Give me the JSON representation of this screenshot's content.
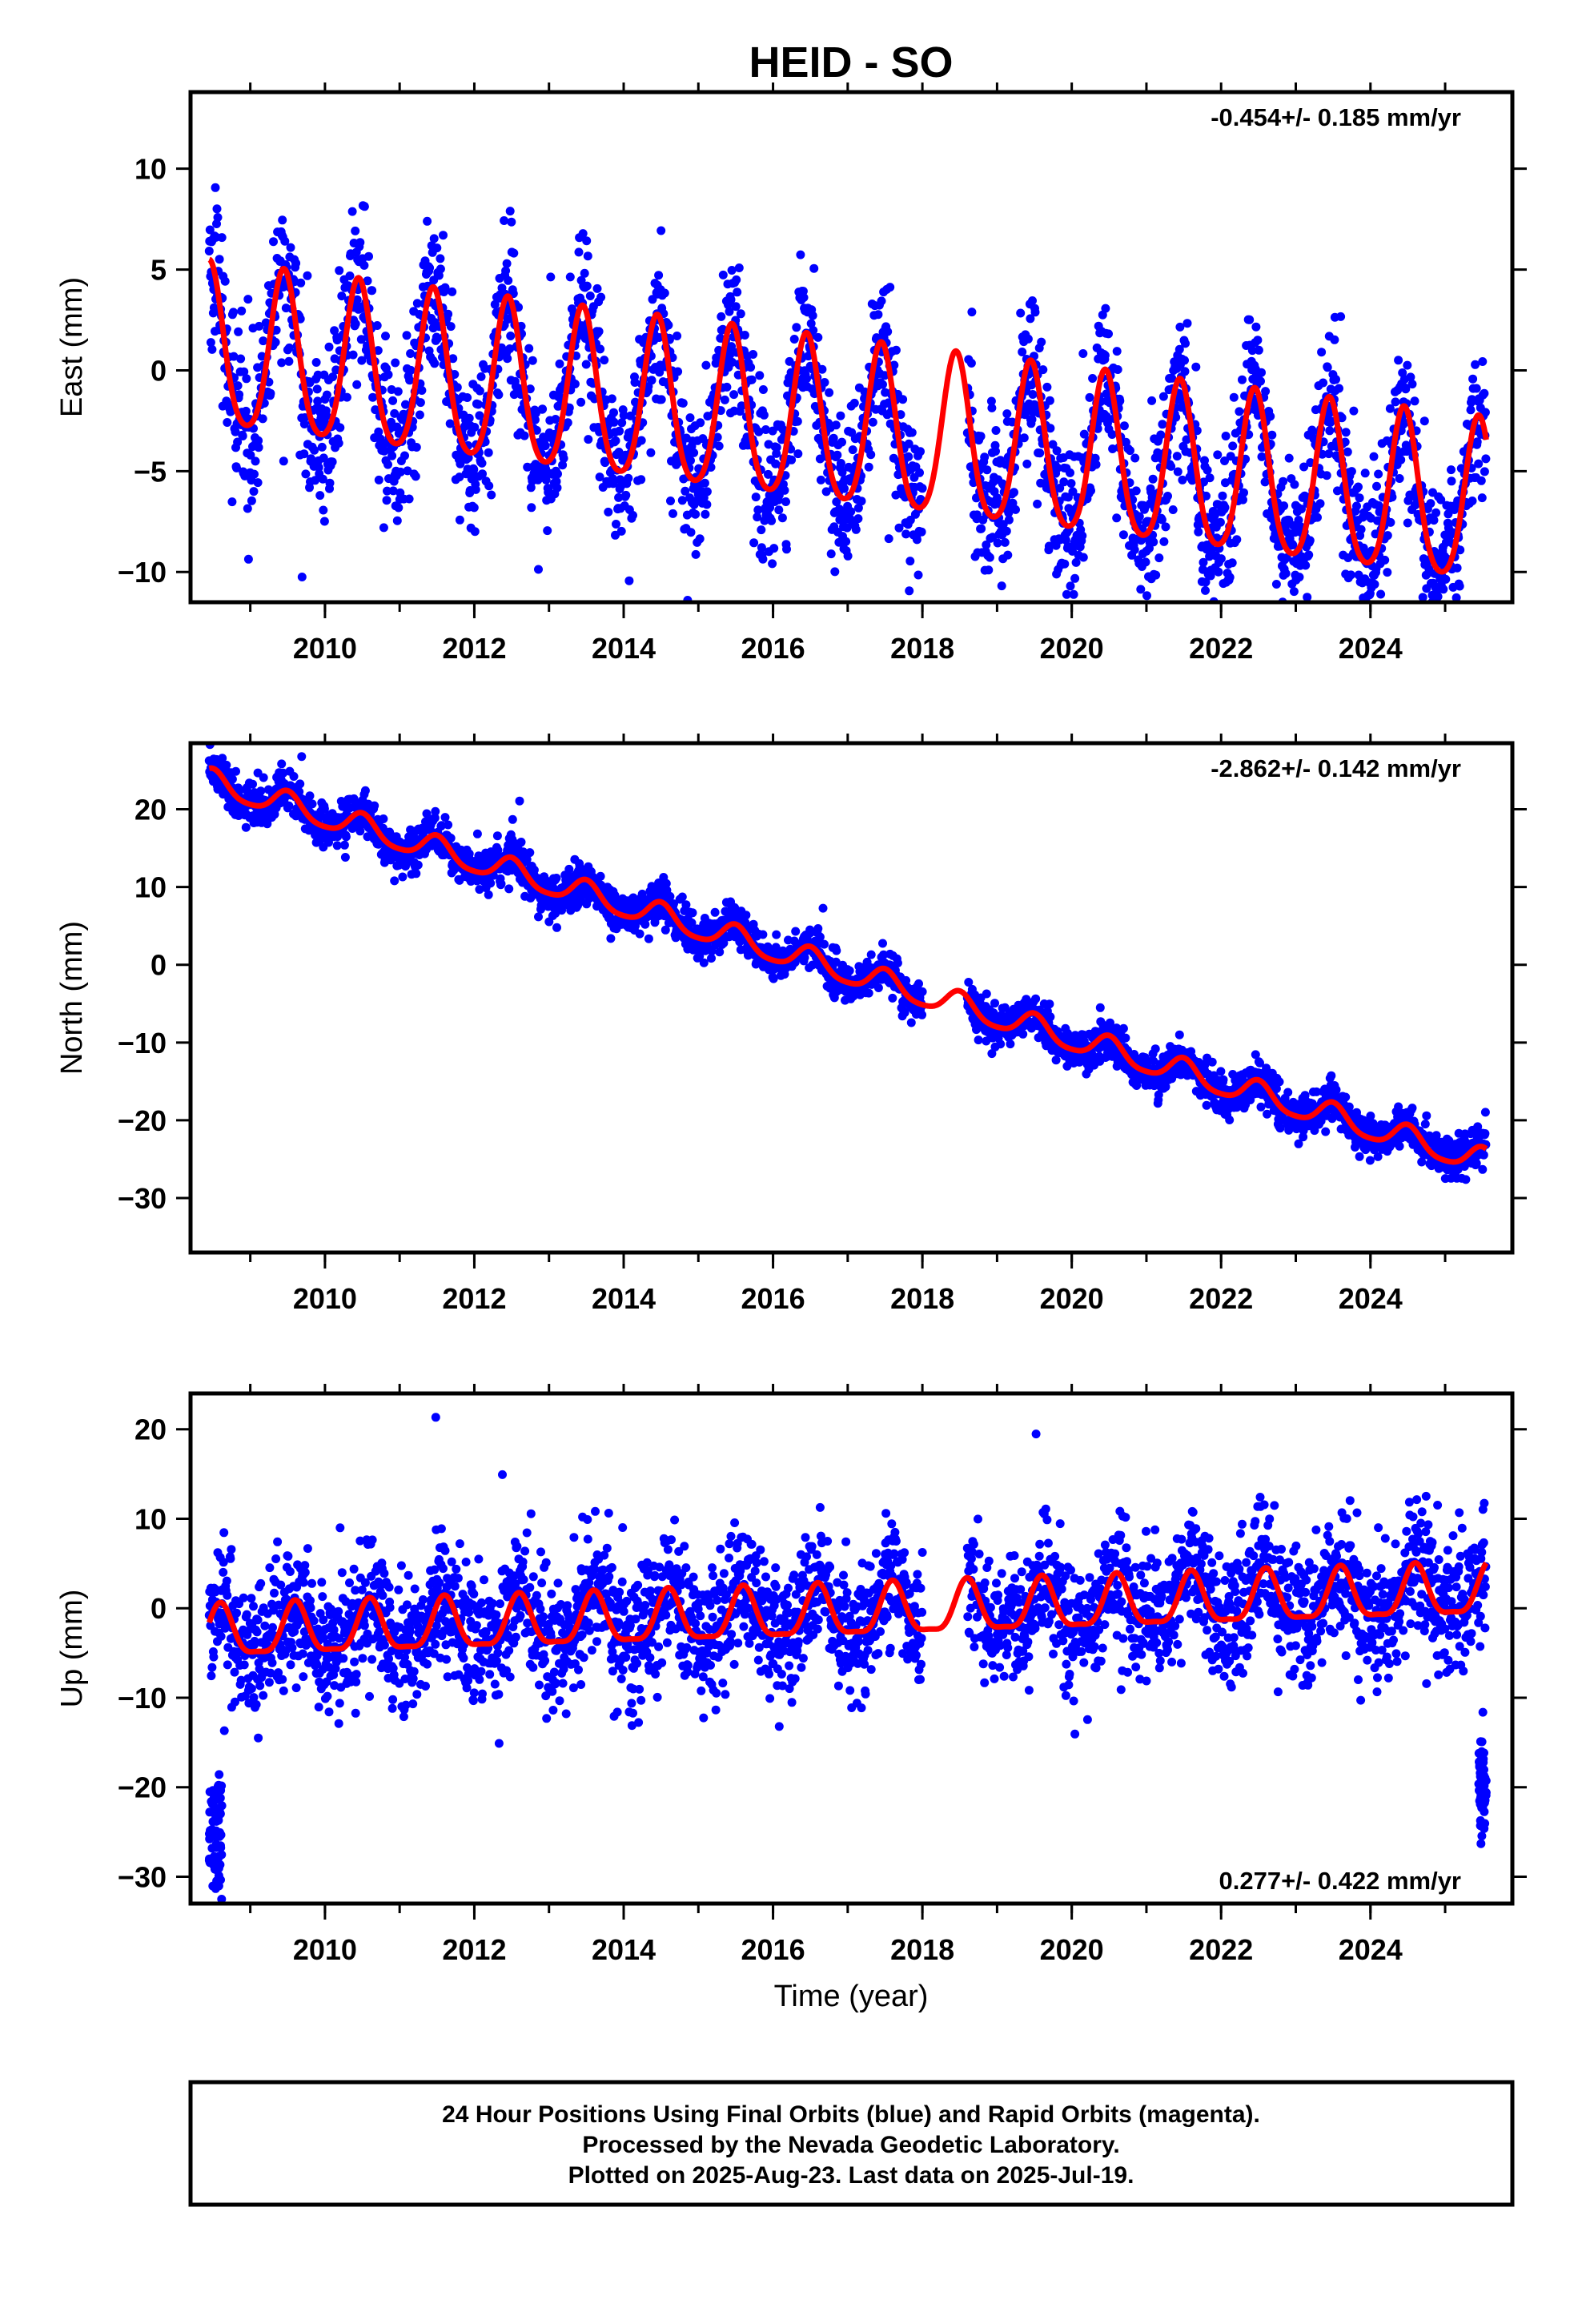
{
  "title": "HEID - SO",
  "x_axis_label": "Time (year)",
  "footer": {
    "line1": "24 Hour Positions Using Final Orbits (blue) and Rapid Orbits (magenta).",
    "line2": "Processed by the Nevada Geodetic Laboratory.",
    "line3": "Plotted on 2025-Aug-23. Last data on 2025-Jul-19."
  },
  "colors": {
    "points": "#0000ff",
    "model": "#ff0000",
    "axes": "#000000"
  },
  "chart_data": [
    {
      "type": "scatter",
      "name": "east",
      "ylabel": "East (mm)",
      "rate_label": "-0.454+/- 0.185 mm/yr",
      "rate_position": "top-right",
      "xlim": [
        2008.2,
        2025.9
      ],
      "ylim": [
        -11.5,
        13.8
      ],
      "xticks": [
        2010,
        2012,
        2014,
        2016,
        2018,
        2020,
        2022,
        2024
      ],
      "yticks": [
        -10,
        -5,
        0,
        5,
        10
      ],
      "ytick_labels": [
        "−10",
        "−5",
        "0",
        "5",
        "10"
      ],
      "data_start": 2008.45,
      "data_end": 2025.55,
      "gap": [
        2018.0,
        2018.6
      ],
      "series": [
        {
          "name": "Daily positions",
          "kind": "points",
          "model": {
            "offset": 0.9,
            "trend": -0.454,
            "annual_amp": 4.0,
            "annual_peak": 0.45,
            "semiannual_amp": 0.6,
            "noise_sd": 1.9,
            "start_value": 7.3
          }
        },
        {
          "name": "Fitted model",
          "kind": "line",
          "model": {
            "offset": 0.9,
            "trend": -0.454,
            "annual_amp": 4.0,
            "annual_peak": 0.45,
            "semiannual_amp": 0.6
          }
        }
      ]
    },
    {
      "type": "scatter",
      "name": "north",
      "ylabel": "North (mm)",
      "rate_label": "-2.862+/- 0.142 mm/yr",
      "rate_position": "top-right",
      "xlim": [
        2008.2,
        2025.9
      ],
      "ylim": [
        -37,
        28.5
      ],
      "xticks": [
        2010,
        2012,
        2014,
        2016,
        2018,
        2020,
        2022,
        2024
      ],
      "yticks": [
        -30,
        -20,
        -10,
        0,
        10,
        20
      ],
      "ytick_labels": [
        "−30",
        "−20",
        "−10",
        "0",
        "10",
        "20"
      ],
      "data_start": 2008.45,
      "data_end": 2025.55,
      "gap": [
        2018.0,
        2018.6
      ],
      "series": [
        {
          "name": "Daily positions",
          "kind": "points",
          "model": {
            "offset": 23.5,
            "trend": -2.862,
            "annual_amp": 1.6,
            "annual_peak": 0.5,
            "semiannual_amp": 0.3,
            "noise_sd": 1.3,
            "start_value": 24.0
          }
        },
        {
          "name": "Fitted model",
          "kind": "line",
          "model": {
            "offset": 23.5,
            "trend": -2.862,
            "annual_amp": 1.6,
            "annual_peak": 0.5,
            "semiannual_amp": 0.3
          }
        }
      ]
    },
    {
      "type": "scatter",
      "name": "up",
      "ylabel": "Up (mm)",
      "rate_label": "0.277+/- 0.422 mm/yr",
      "rate_position": "bottom-right",
      "xlim": [
        2008.2,
        2025.9
      ],
      "ylim": [
        -33,
        24
      ],
      "xticks": [
        2010,
        2012,
        2014,
        2016,
        2018,
        2020,
        2022,
        2024
      ],
      "yticks": [
        -30,
        -20,
        -10,
        0,
        10,
        20
      ],
      "ytick_labels": [
        "−30",
        "−20",
        "−10",
        "0",
        "10",
        "20"
      ],
      "data_start": 2008.45,
      "data_end": 2025.55,
      "gap": [
        2018.0,
        2018.6
      ],
      "series": [
        {
          "name": "Daily positions",
          "kind": "points",
          "model": {
            "offset": -3.0,
            "trend": 0.277,
            "annual_amp": 2.8,
            "annual_peak": 0.6,
            "semiannual_amp": 0.8,
            "noise_sd": 3.6,
            "start_value": -6.0
          },
          "outlier_clusters": [
            {
              "x": [
                2008.45,
                2008.62
              ],
              "y_center": -25,
              "y_spread": 3.0
            },
            {
              "x": [
                2025.45,
                2025.55
              ],
              "y_center": -20,
              "y_spread": 2.5
            }
          ]
        },
        {
          "name": "Fitted model",
          "kind": "line",
          "model": {
            "offset": -3.0,
            "trend": 0.277,
            "annual_amp": 2.8,
            "annual_peak": 0.6,
            "semiannual_amp": 0.8
          }
        }
      ]
    }
  ]
}
